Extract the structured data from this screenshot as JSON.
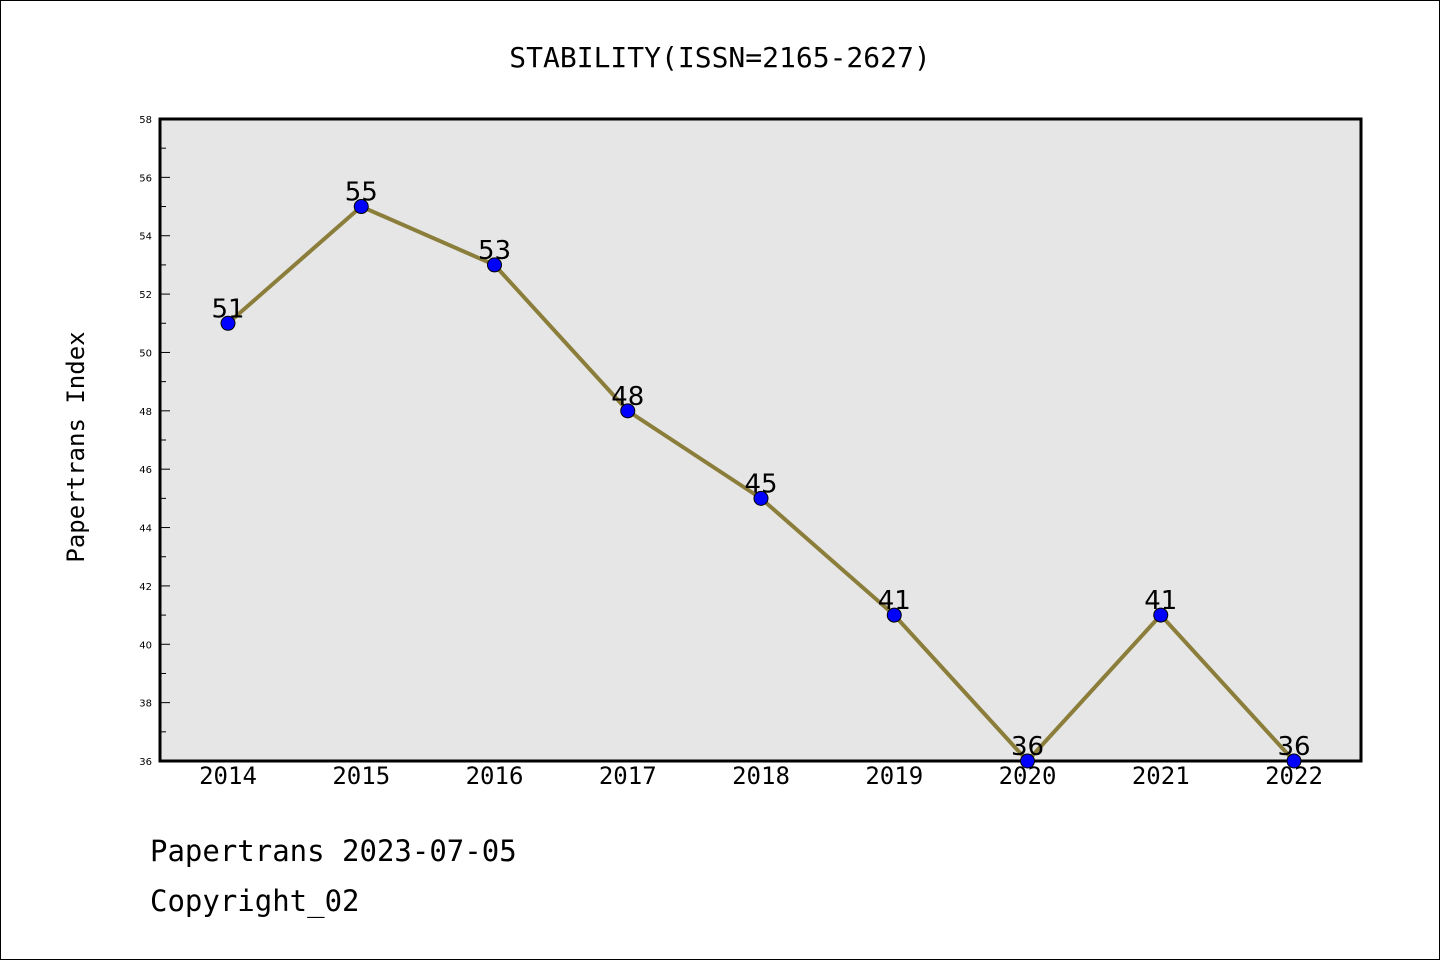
{
  "chart_data": {
    "type": "line",
    "title": "STABILITY(ISSN=2165-2627)",
    "xlabel": "",
    "ylabel": "Papertrans Index",
    "categories": [
      "2014",
      "2015",
      "2016",
      "2017",
      "2018",
      "2019",
      "2020",
      "2021",
      "2022"
    ],
    "series": [
      {
        "values": [
          51,
          55,
          53,
          48,
          45,
          41,
          36,
          41,
          36
        ]
      }
    ],
    "data_labels": [
      "51",
      "55",
      "53",
      "48",
      "45",
      "41",
      "36",
      "41",
      "36"
    ],
    "ylim": [
      36,
      58
    ],
    "y_ticks": [
      36,
      38,
      40,
      42,
      44,
      46,
      48,
      50,
      52,
      54,
      56,
      58
    ],
    "grid": false,
    "legend": "none",
    "colors": {
      "line": "#8B7D3A",
      "marker": "#0000FF",
      "plot_background": "#E6E6E6"
    }
  },
  "footer": {
    "date_line": "Papertrans 2023-07-05",
    "copyright_line": "Copyright_02"
  }
}
